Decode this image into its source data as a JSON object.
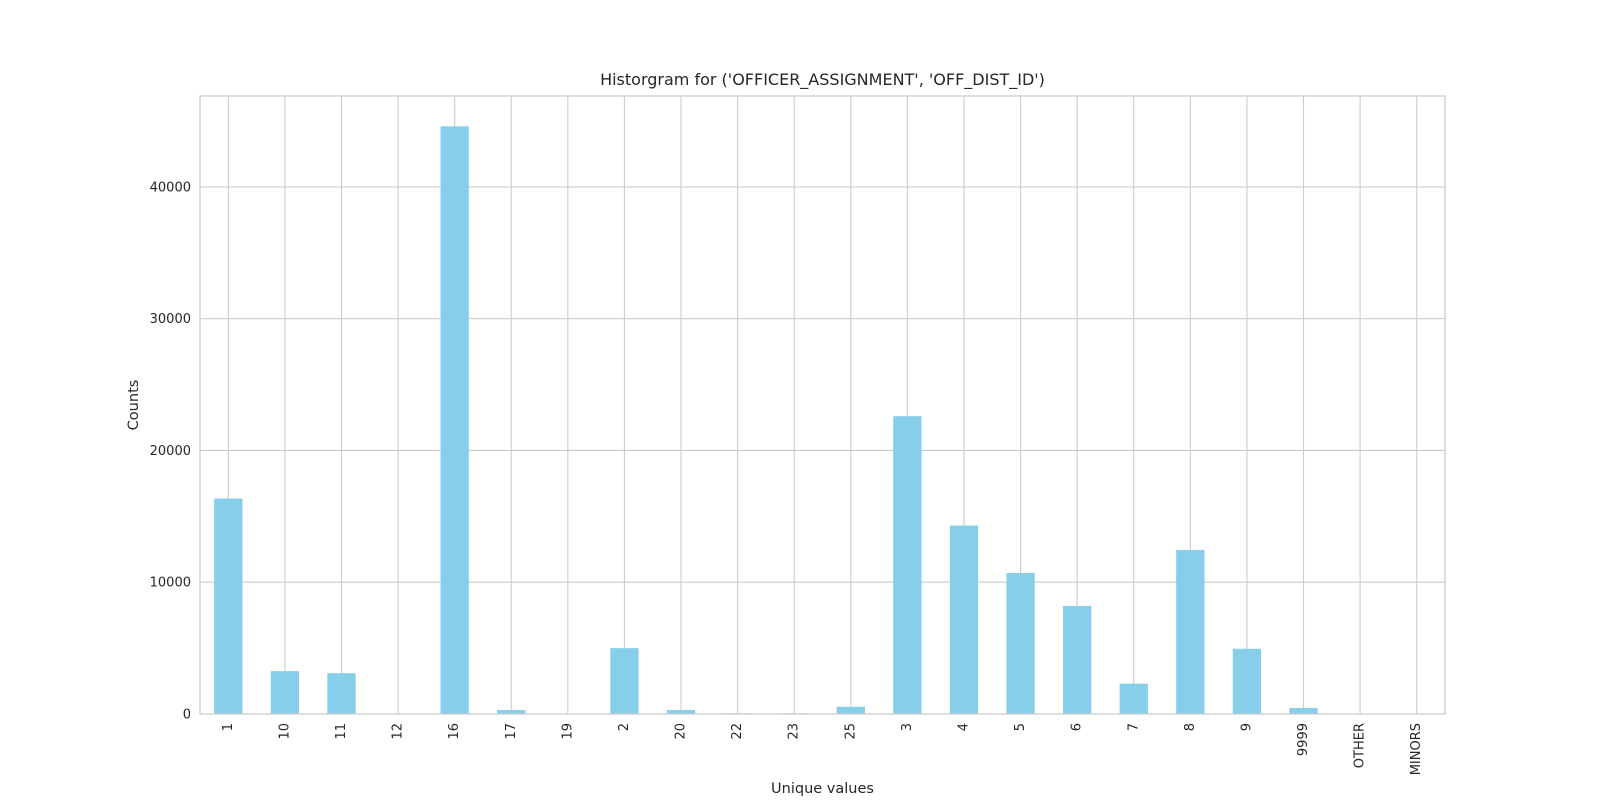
{
  "chart_data": {
    "type": "bar",
    "title": "Historgram for ('OFFICER_ASSIGNMENT', 'OFF_DIST_ID')",
    "xlabel": "Unique values",
    "ylabel": "Counts",
    "categories": [
      "1",
      "10",
      "11",
      "12",
      "16",
      "17",
      "19",
      "2",
      "20",
      "22",
      "23",
      "25",
      "3",
      "4",
      "5",
      "6",
      "7",
      "8",
      "9",
      "9999",
      "OTHER",
      "MINORS"
    ],
    "values": [
      16350,
      3250,
      3100,
      0,
      44600,
      300,
      0,
      5000,
      300,
      50,
      50,
      550,
      22600,
      14300,
      10700,
      8200,
      2300,
      12450,
      4950,
      450,
      0,
      0
    ],
    "ylim": [
      0,
      46900
    ],
    "yticks": [
      0,
      10000,
      20000,
      30000,
      40000
    ],
    "ytick_labels": [
      "0",
      "10000",
      "20000",
      "30000",
      "40000"
    ],
    "grid": true,
    "bar_color": "#87ceeb"
  }
}
